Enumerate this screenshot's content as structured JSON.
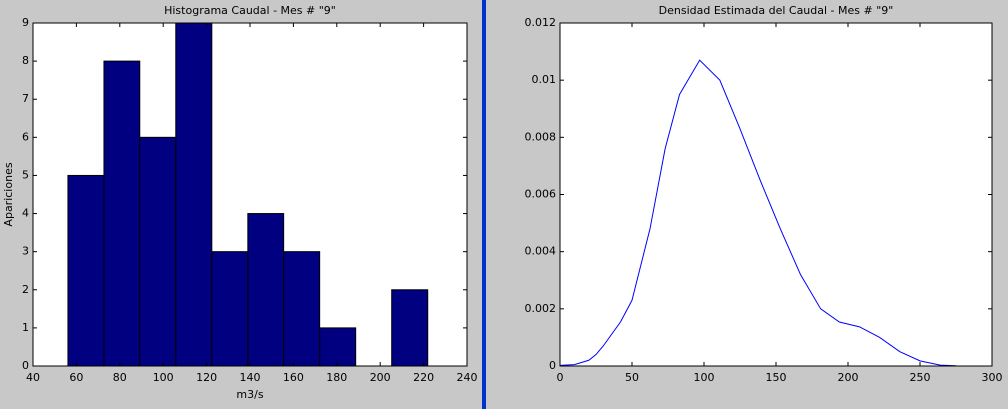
{
  "chart_data": [
    {
      "type": "histogram",
      "title": "Histograma Caudal - Mes # \"9\"",
      "xlabel": "m3/s",
      "ylabel": "Apariciones",
      "bins": [
        56.1,
        72.7,
        89.2,
        105.8,
        122.4,
        139.0,
        155.5,
        172.1,
        188.7,
        205.3,
        221.9
      ],
      "values": [
        5,
        8,
        6,
        9,
        3,
        4,
        3,
        1,
        0,
        2
      ],
      "color": "#000080",
      "xlim": [
        40,
        240
      ],
      "xticks": [
        40,
        60,
        80,
        100,
        120,
        140,
        160,
        180,
        200,
        220,
        240
      ],
      "ylim": [
        0,
        9
      ],
      "yticks": [
        0,
        1,
        2,
        3,
        4,
        5,
        6,
        7,
        8,
        9
      ]
    },
    {
      "type": "line",
      "title": "Densidad Estimada del Caudal - Mes # \"9\"",
      "x": [
        0,
        10,
        20,
        25,
        30,
        42,
        50,
        62.5,
        73,
        83,
        97,
        111,
        125,
        139,
        153,
        167,
        181,
        194,
        208,
        222,
        236,
        250,
        264,
        275
      ],
      "series": [
        {
          "color": "#0000ff",
          "values": [
            2e-05,
            5e-05,
            0.0002,
            0.0004,
            0.0007,
            0.00154,
            0.0023,
            0.0048,
            0.0076,
            0.0095,
            0.0107,
            0.01,
            0.0083,
            0.0065,
            0.0048,
            0.0032,
            0.002,
            0.00154,
            0.00137,
            0.001,
            0.0005,
            0.00018,
            3e-05,
            1e-05
          ]
        }
      ],
      "xlim": [
        0,
        300
      ],
      "xticks": [
        0,
        50,
        100,
        150,
        200,
        250,
        300
      ],
      "ylim": [
        0,
        0.012
      ],
      "yticks": [
        0,
        0.002,
        0.004,
        0.006,
        0.008,
        0.01,
        0.012
      ]
    }
  ]
}
